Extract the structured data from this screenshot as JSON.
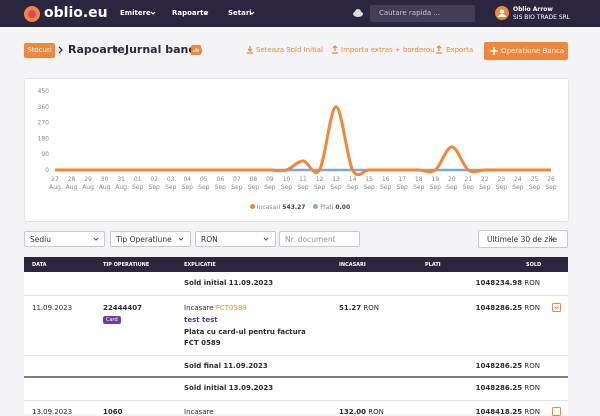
{
  "nav": {
    "logo": "oblio.eu",
    "menu": [
      "Emitere",
      "Rapoarte",
      "Setari"
    ],
    "search_placeholder": "Cautare rapida ...",
    "user_name": "Oblio Arrow",
    "company": "SIS BIO TRADE SRL"
  },
  "breadcrumb": [
    "Stocuri",
    "Rapoarte",
    "Jurnal banca"
  ],
  "actions": [
    "Seteaza Sold Initial",
    "Importa extras + borderou",
    "Exporta"
  ],
  "primary_action": "Operatiune Banca",
  "chart_data": {
    "type": "line",
    "categories": [
      "27 Aug",
      "28 Aug",
      "29 Aug",
      "30 Aug",
      "31 Aug",
      "01 Sep",
      "02 Sep",
      "03 Sep",
      "04 Sep",
      "05 Sep",
      "06 Sep",
      "07 Sep",
      "08 Sep",
      "09 Sep",
      "10 Sep",
      "11 Sep",
      "12 Sep",
      "13 Sep",
      "14 Sep",
      "15 Sep",
      "16 Sep",
      "17 Sep",
      "18 Sep",
      "19 Sep",
      "20 Sep",
      "21 Sep",
      "22 Sep",
      "23 Sep",
      "24 Sep",
      "25 Sep",
      "26 Sep"
    ],
    "series": [
      {
        "name": "Incasari",
        "total": "543.27",
        "color": "#f0873a",
        "values": [
          0,
          0,
          0,
          0,
          0,
          0,
          0,
          0,
          0,
          0,
          0,
          0,
          0,
          0,
          0,
          51.27,
          0,
          360,
          0,
          0,
          0,
          0,
          0,
          0,
          132,
          0,
          0,
          0,
          0,
          0,
          0
        ]
      },
      {
        "name": "Plati",
        "total": "0.00",
        "color": "#7fa7d6",
        "values": [
          0,
          0,
          0,
          0,
          0,
          0,
          0,
          0,
          0,
          0,
          0,
          0,
          0,
          0,
          0,
          0,
          0,
          0,
          0,
          0,
          0,
          0,
          0,
          0,
          0,
          0,
          0,
          0,
          0,
          0,
          0
        ]
      }
    ],
    "ylim": [
      0,
      450
    ],
    "yticks": [
      0,
      90,
      180,
      270,
      360,
      450
    ],
    "grid": false
  },
  "filters": {
    "selects": [
      "Sediu",
      "Tip Operatiune",
      "RON"
    ],
    "document_placeholder": "Nr. document",
    "period": "Ultimele 30 de zile"
  },
  "table": {
    "columns": [
      "DATA",
      "TIP OPERATIUNE",
      "EXPLICATIE",
      "INCASARI",
      "PLATI",
      "SOLD"
    ],
    "rows": [
      {
        "label": "Sold initial 11.09.2023",
        "balance": "1048234.98",
        "currency": "RON"
      },
      {
        "date": "11.09.2023",
        "number": "22444407",
        "badge": "Card",
        "type": "Incasare",
        "doc": "FCT0589",
        "note": "test test",
        "description": "Plata cu card-ul pentru factura FCT 0589",
        "amount": "51.27",
        "currency": "RON",
        "balance": "1048286.25"
      },
      {
        "label": "Sold final 11.09.2023",
        "balance": "1048286.25",
        "currency": "RON"
      },
      {
        "label": "Sold initial 13.09.2023",
        "balance": "1048286.25",
        "currency": "RON"
      },
      {
        "date": "13.09.2023",
        "number": "1060",
        "type": "Incasare",
        "amount": "132.00",
        "currency": "RON",
        "balance": "1048418.25"
      }
    ]
  }
}
